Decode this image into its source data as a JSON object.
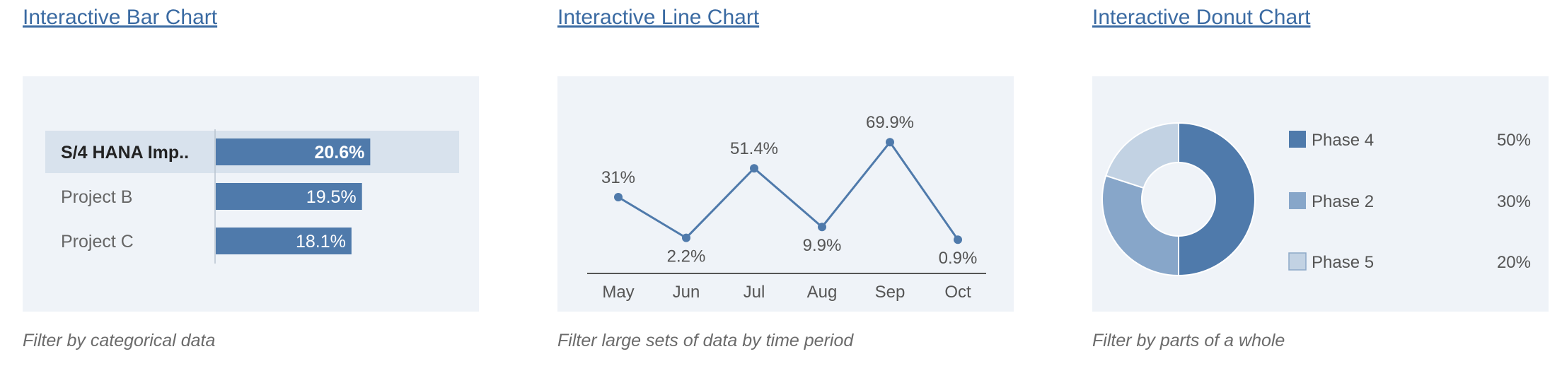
{
  "cards": [
    {
      "title": "Interactive Bar Chart",
      "description": "Filter by categorical data"
    },
    {
      "title": "Interactive Line Chart",
      "description": "Filter large sets of data by time period"
    },
    {
      "title": "Interactive Donut Chart",
      "description": "Filter by parts of a whole"
    }
  ],
  "colors": {
    "link": "#3a6aa2",
    "panel_bg": "#eff3f8",
    "primary": "#4f7aab",
    "secondary": "#87a6c9",
    "tertiary": "#c2d2e3",
    "highlight_row": "#d8e2ed",
    "label_text": "#666666",
    "axis": "#555555"
  },
  "chart_data": [
    {
      "type": "bar",
      "orientation": "horizontal",
      "categories": [
        "S/4 HANA Imp..",
        "Project B",
        "Project C"
      ],
      "values": [
        20.6,
        19.5,
        18.1
      ],
      "value_labels": [
        "20.6%",
        "19.5%",
        "18.1%"
      ],
      "selected": "S/4 HANA Imp.."
    },
    {
      "type": "line",
      "x": [
        "May",
        "Jun",
        "Jul",
        "Aug",
        "Sep",
        "Oct"
      ],
      "values": [
        31,
        2.2,
        51.4,
        9.9,
        69.9,
        0.9
      ],
      "value_labels": [
        "31%",
        "2.2%",
        "51.4%",
        "9.9%",
        "69.9%",
        "0.9%"
      ]
    },
    {
      "type": "pie",
      "variant": "donut",
      "labels": [
        "Phase 4",
        "Phase 2",
        "Phase 5"
      ],
      "values": [
        50,
        30,
        20
      ],
      "value_labels": [
        "50%",
        "30%",
        "20%"
      ],
      "colors": [
        "#4f7aab",
        "#87a6c9",
        "#c2d2e3"
      ]
    }
  ]
}
